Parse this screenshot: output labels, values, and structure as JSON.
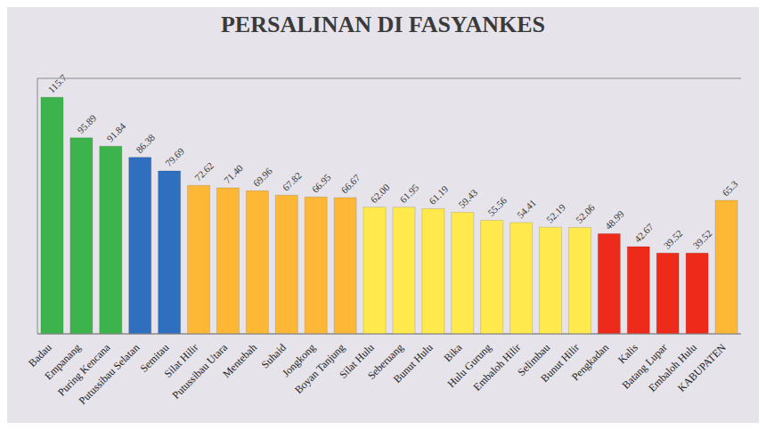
{
  "chart_data": {
    "type": "bar",
    "title": "PERSALINAN DI FASYANKES",
    "categories": [
      "Badau",
      "Empanang",
      "Puring Kencana",
      "Putussibau Selatan",
      "Semitau",
      "Silat Hilir",
      "Putussibau Utara",
      "Mentebah",
      "Suhaid",
      "Jongkong",
      "Boyan Tanjung",
      "Silat Hulu",
      "Seberuang",
      "Bunut Hulu",
      "Bika",
      "Hulu Gurung",
      "Embaloh Hilir",
      "Selimbau",
      "Bunut Hilir",
      "Pengkadan",
      "Kalis",
      "Batang Lupar",
      "Embaloh Hulu",
      "KABUPATEN"
    ],
    "values": [
      115.7,
      95.89,
      91.84,
      86.38,
      79.69,
      72.62,
      71.4,
      69.96,
      67.82,
      66.95,
      66.67,
      62,
      61.95,
      61.19,
      59.43,
      55.56,
      54.41,
      52.19,
      52.06,
      48.99,
      42.67,
      39.52,
      39.52,
      65.3
    ],
    "value_labels": [
      "115.7",
      "95.89",
      "91.84",
      "86.38",
      "79.69",
      "72.62",
      "71.40",
      "69.96",
      "67.82",
      "66.95",
      "66.67",
      "62.00",
      "61.95",
      "61.19",
      "59.43",
      "55.56",
      "54.41",
      "52.19",
      "52.06",
      "48.99",
      "42.67",
      "39.52",
      "39.52",
      "65.3"
    ],
    "colors": [
      "#3cb44b",
      "#3cb44b",
      "#3cb44b",
      "#2f6fbf",
      "#2f6fbf",
      "#ffb835",
      "#ffb835",
      "#ffb835",
      "#ffb835",
      "#ffb835",
      "#ffb835",
      "#ffe94d",
      "#ffe94d",
      "#ffe94d",
      "#ffe94d",
      "#ffe94d",
      "#ffe94d",
      "#ffe94d",
      "#ffe94d",
      "#ee2b1b",
      "#ee2b1b",
      "#ee2b1b",
      "#ee2b1b",
      "#ffb835"
    ],
    "ylim": [
      0,
      125
    ],
    "yticks": [
      0,
      20,
      40,
      60,
      80,
      100,
      120
    ],
    "grid": true,
    "data_labels": true,
    "tick_labels": "x"
  }
}
